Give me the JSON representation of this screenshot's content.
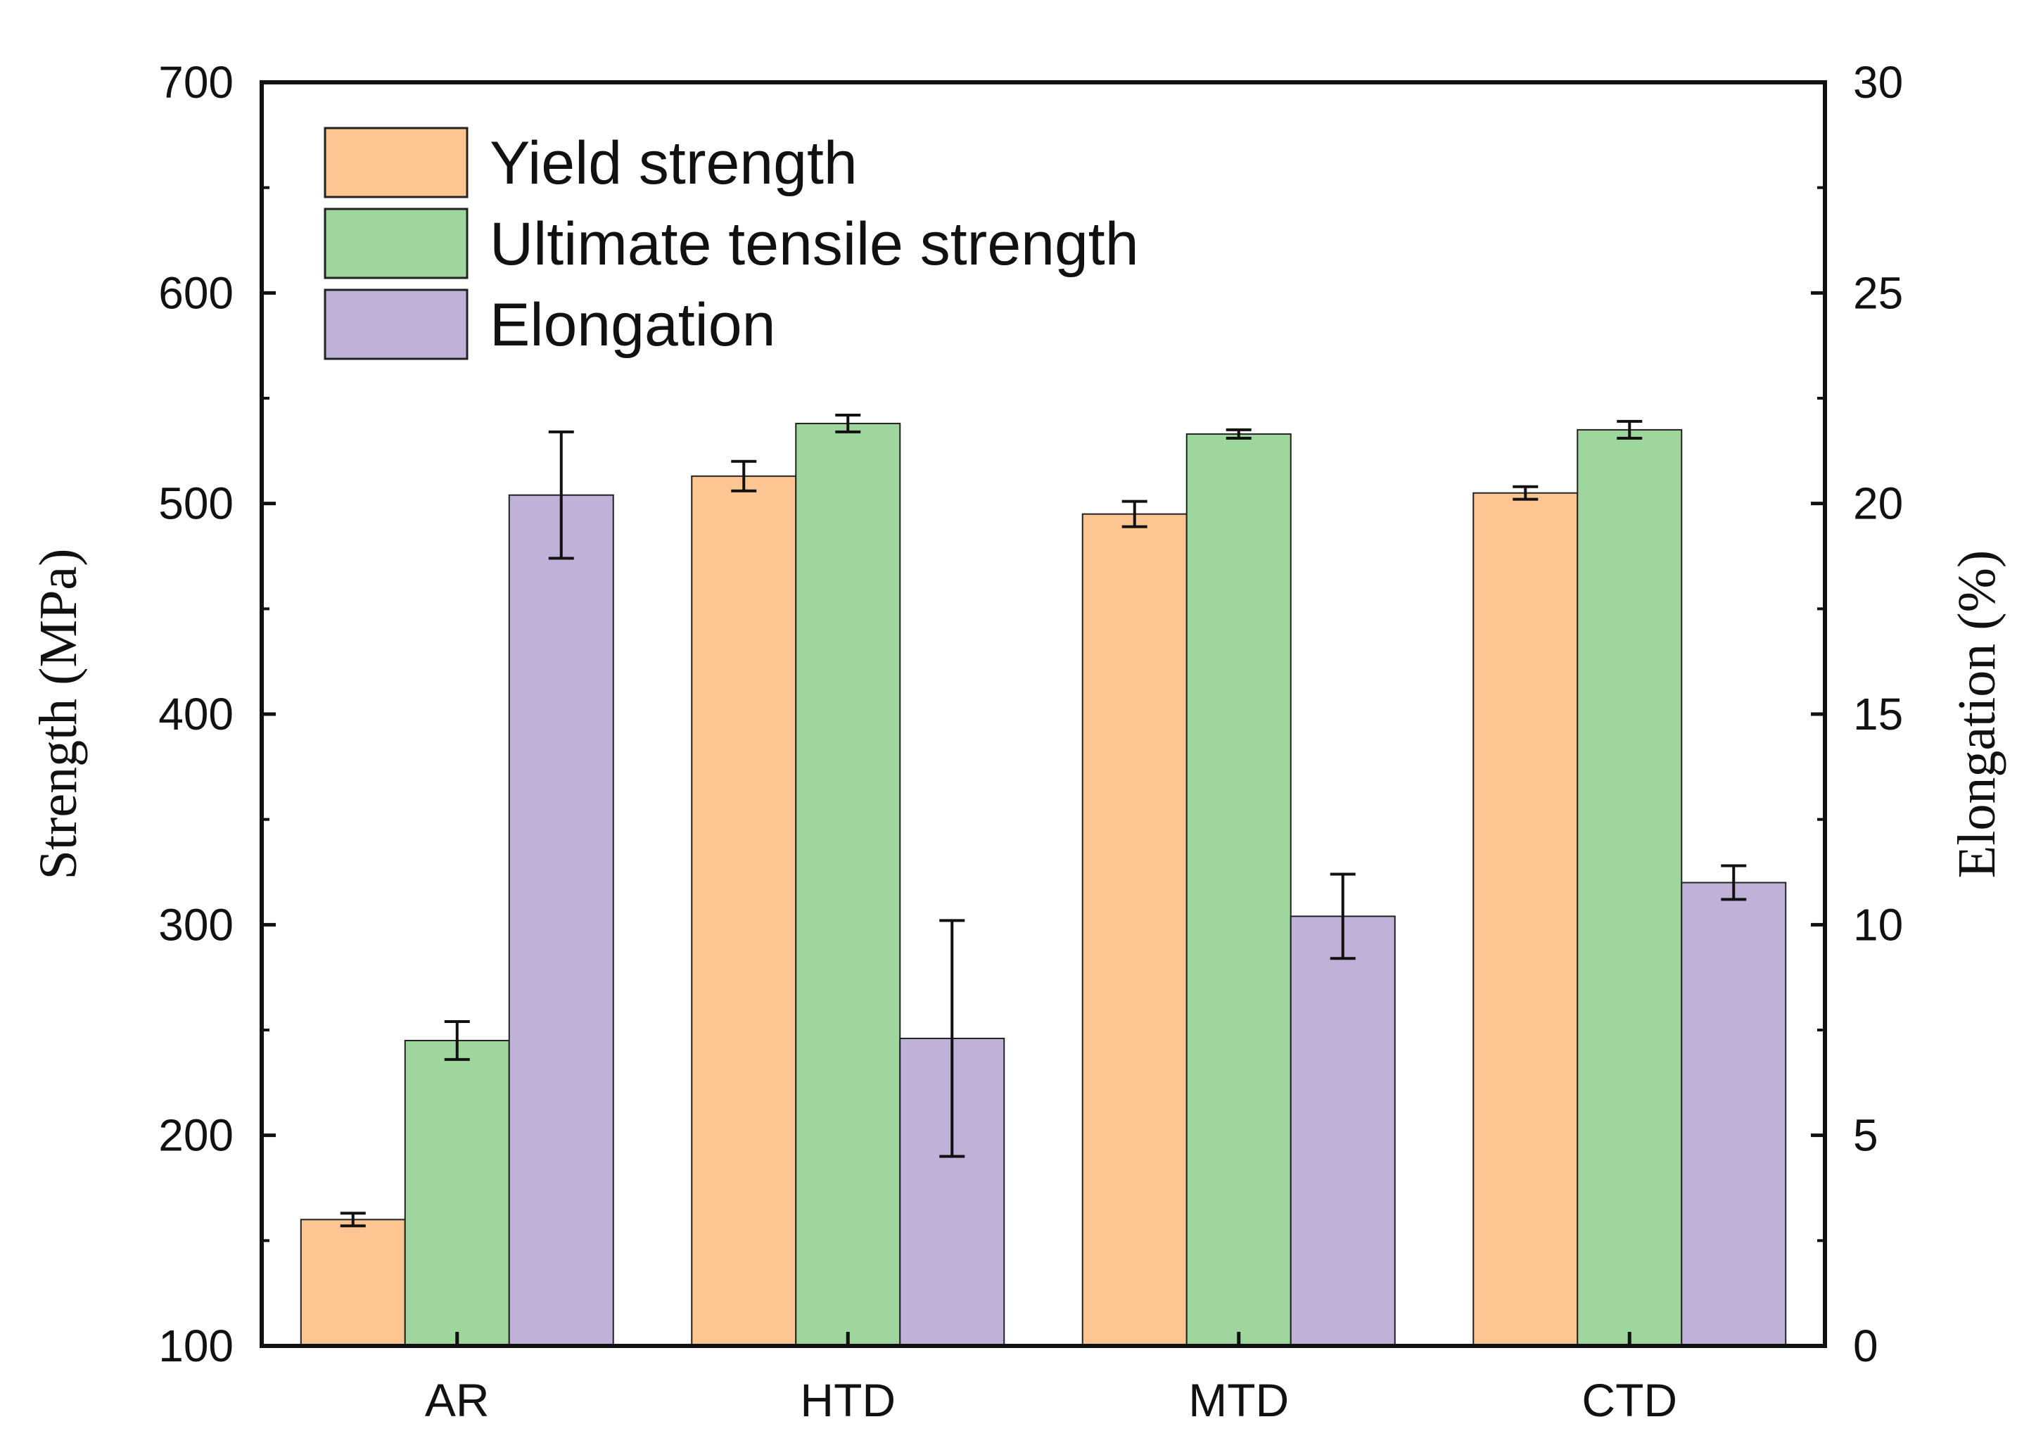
{
  "chart_data": {
    "type": "bar",
    "categories": [
      "AR",
      "HTD",
      "MTD",
      "CTD"
    ],
    "series": [
      {
        "name": "Yield strength",
        "axis": "left",
        "color": "#fcc592",
        "values": [
          160,
          513,
          495,
          505
        ],
        "errors": [
          3,
          7,
          6,
          3
        ]
      },
      {
        "name": "Ultimate tensile strength",
        "axis": "left",
        "color": "#9fd69d",
        "values": [
          245,
          538,
          533,
          535
        ],
        "errors": [
          9,
          4,
          2,
          4
        ]
      },
      {
        "name": "Elongation",
        "axis": "right",
        "color": "#bfb1d7",
        "values": [
          20.2,
          7.3,
          10.2,
          11.0
        ],
        "errors": [
          1.5,
          2.8,
          1.0,
          0.4
        ]
      }
    ],
    "left_axis": {
      "label": "Strength (MPa)",
      "ylim": [
        100,
        700
      ],
      "ticks": [
        100,
        200,
        300,
        400,
        500,
        600,
        700
      ]
    },
    "right_axis": {
      "label": "Elongation (%)",
      "ylim": [
        0,
        30
      ],
      "ticks": [
        0,
        5,
        10,
        15,
        20,
        25,
        30
      ]
    },
    "xlabel": "",
    "legend_position": "top-left"
  }
}
